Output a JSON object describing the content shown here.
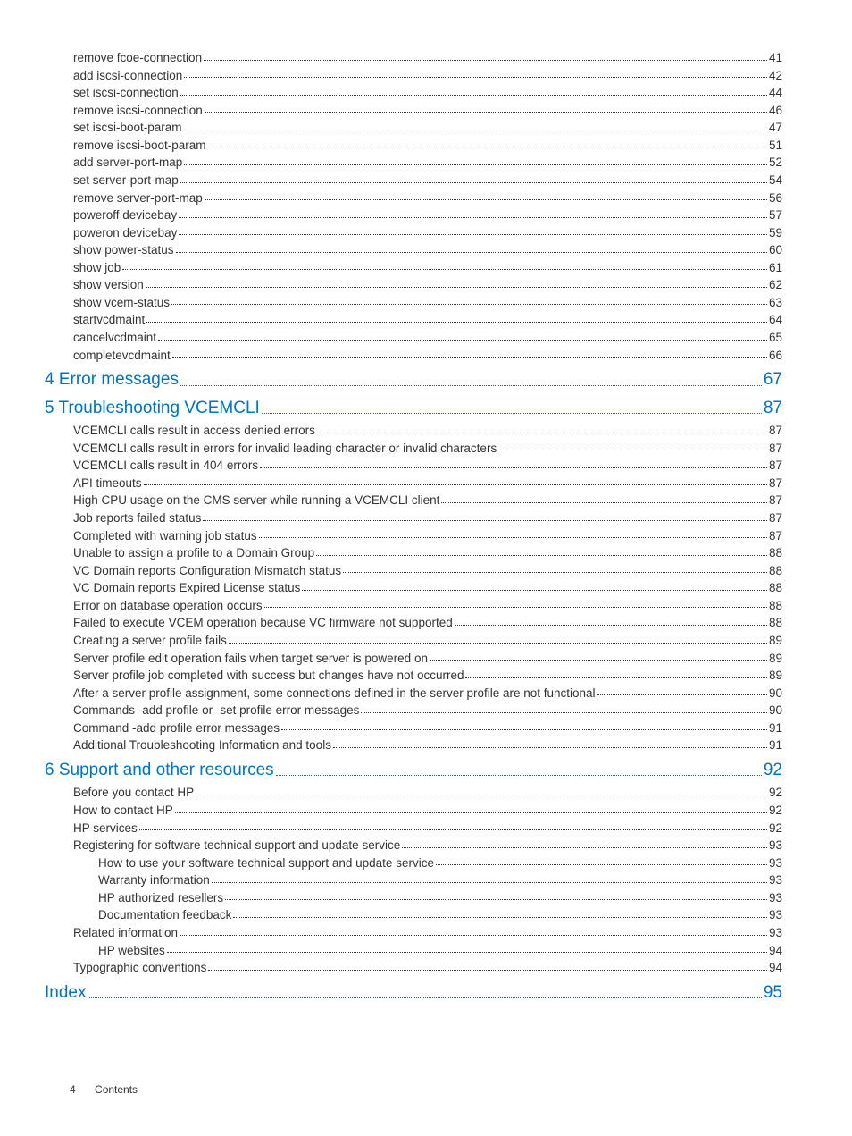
{
  "toc": [
    {
      "level": 2,
      "label": "remove fcoe-connection",
      "page": "41"
    },
    {
      "level": 2,
      "label": "add iscsi-connection",
      "page": "42"
    },
    {
      "level": 2,
      "label": "set iscsi-connection",
      "page": "44"
    },
    {
      "level": 2,
      "label": "remove iscsi-connection",
      "page": "46"
    },
    {
      "level": 2,
      "label": "set iscsi-boot-param",
      "page": "47"
    },
    {
      "level": 2,
      "label": "remove iscsi-boot-param",
      "page": "51"
    },
    {
      "level": 2,
      "label": "add server-port-map",
      "page": "52"
    },
    {
      "level": 2,
      "label": "set server-port-map",
      "page": "54"
    },
    {
      "level": 2,
      "label": "remove server-port-map",
      "page": "56"
    },
    {
      "level": 2,
      "label": "poweroff devicebay",
      "page": "57"
    },
    {
      "level": 2,
      "label": "poweron devicebay",
      "page": "59"
    },
    {
      "level": 2,
      "label": "show power-status",
      "page": "60"
    },
    {
      "level": 2,
      "label": "show job",
      "page": "61"
    },
    {
      "level": 2,
      "label": "show version",
      "page": "62"
    },
    {
      "level": 2,
      "label": "show vcem-status",
      "page": "63"
    },
    {
      "level": 2,
      "label": "startvcdmaint",
      "page": "64"
    },
    {
      "level": 2,
      "label": "cancelvcdmaint",
      "page": "65"
    },
    {
      "level": 2,
      "label": "completevcdmaint",
      "page": "66"
    },
    {
      "level": 1,
      "label": "4 Error messages",
      "page": "67",
      "chapter": true
    },
    {
      "level": 1,
      "label": "5 Troubleshooting VCEMCLI",
      "page": "87",
      "chapter": true
    },
    {
      "level": 2,
      "label": "VCEMCLI calls result in access denied errors",
      "page": "87"
    },
    {
      "level": 2,
      "label": "VCEMCLI calls result in errors for invalid leading character or invalid characters",
      "page": "87"
    },
    {
      "level": 2,
      "label": "VCEMCLI calls result in 404 errors",
      "page": "87"
    },
    {
      "level": 2,
      "label": "API timeouts",
      "page": "87"
    },
    {
      "level": 2,
      "label": "High CPU usage on the CMS server while running a VCEMCLI client",
      "page": "87"
    },
    {
      "level": 2,
      "label": "Job reports failed status",
      "page": "87"
    },
    {
      "level": 2,
      "label": "Completed with warning job status",
      "page": "87"
    },
    {
      "level": 2,
      "label": "Unable to assign a profile to a Domain Group",
      "page": "88"
    },
    {
      "level": 2,
      "label": "VC Domain reports Configuration Mismatch status",
      "page": "88"
    },
    {
      "level": 2,
      "label": "VC Domain reports Expired License status",
      "page": "88"
    },
    {
      "level": 2,
      "label": "Error on database operation occurs",
      "page": "88"
    },
    {
      "level": 2,
      "label": "Failed to execute VCEM operation because VC firmware not supported",
      "page": "88"
    },
    {
      "level": 2,
      "label": "Creating a server profile fails",
      "page": "89"
    },
    {
      "level": 2,
      "label": "Server profile edit operation fails when target server is powered on",
      "page": "89"
    },
    {
      "level": 2,
      "label": "Server profile job completed with success but changes have not occurred",
      "page": "89"
    },
    {
      "level": 2,
      "label": "After a server profile assignment, some connections defined in the server profile are not functional",
      "page": "90"
    },
    {
      "level": 2,
      "label": "Commands -add profile or -set profile error messages",
      "page": "90"
    },
    {
      "level": 2,
      "label": "Command -add profile error messages",
      "page": "91"
    },
    {
      "level": 2,
      "label": "Additional Troubleshooting Information and tools",
      "page": "91"
    },
    {
      "level": 1,
      "label": "6 Support and other resources",
      "page": "92",
      "chapter": true
    },
    {
      "level": 2,
      "label": "Before you contact HP",
      "page": "92"
    },
    {
      "level": 2,
      "label": "How to contact HP",
      "page": "92"
    },
    {
      "level": 2,
      "label": "HP services",
      "page": "92"
    },
    {
      "level": 2,
      "label": "Registering for software technical support and update service",
      "page": "93"
    },
    {
      "level": 3,
      "label": "How to use your software technical support and update service",
      "page": "93"
    },
    {
      "level": 3,
      "label": "Warranty information",
      "page": "93"
    },
    {
      "level": 3,
      "label": "HP authorized resellers",
      "page": "93"
    },
    {
      "level": 3,
      "label": "Documentation feedback",
      "page": "93"
    },
    {
      "level": 2,
      "label": "Related information",
      "page": "93"
    },
    {
      "level": 3,
      "label": "HP websites",
      "page": "94"
    },
    {
      "level": 2,
      "label": "Typographic conventions",
      "page": "94"
    },
    {
      "level": 1,
      "label": "Index",
      "page": "95",
      "chapter": true
    }
  ],
  "footer": {
    "page_number": "4",
    "label": "Contents"
  },
  "style": {
    "body_font_size": 13.5,
    "chapter_font_size": 19,
    "chapter_color": "#0073ba",
    "text_color": "#333333",
    "background_color": "#ffffff"
  }
}
